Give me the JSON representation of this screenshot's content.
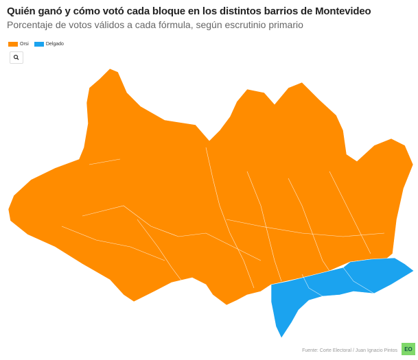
{
  "header": {
    "title": "Quién ganó y cómo votó cada bloque en los distintos barrios de Montevideo",
    "subtitle": "Porcentaje de votos válidos a cada fórmula, según escrutinio primario"
  },
  "legend": [
    {
      "name": "Orsi",
      "color": "#ff8c00"
    },
    {
      "name": "Delgado",
      "color": "#1ba3ef"
    }
  ],
  "footer": {
    "source": "Fuente: Corte Electoral / Juan Ignacio Pintos",
    "logo": "EO"
  }
}
